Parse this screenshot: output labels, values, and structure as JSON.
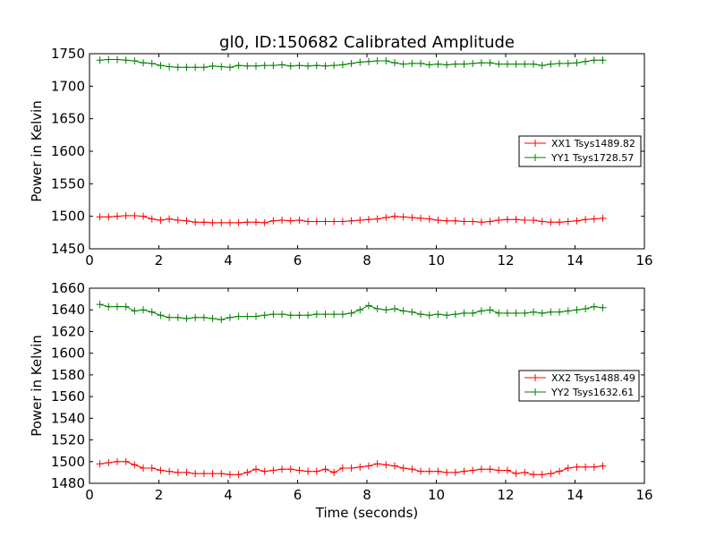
{
  "title": "gl0, ID:150682 Calibrated Amplitude",
  "colors": {
    "red": "#ff0000",
    "green": "#008000"
  },
  "chart_data": [
    {
      "type": "line",
      "title": "gl0, ID:150682 Calibrated Amplitude",
      "xlabel": "",
      "ylabel": "Power in Kelvin",
      "xlim": [
        0,
        16
      ],
      "ylim": [
        1450,
        1750
      ],
      "xticks": [
        "0",
        "2",
        "4",
        "6",
        "8",
        "10",
        "12",
        "14",
        "16"
      ],
      "yticks": [
        "1450",
        "1500",
        "1550",
        "1600",
        "1650",
        "1700",
        "1750"
      ],
      "legend_position": "center-right",
      "x": [
        0.3,
        0.55,
        0.8,
        1.05,
        1.3,
        1.55,
        1.8,
        2.05,
        2.3,
        2.55,
        2.8,
        3.05,
        3.3,
        3.55,
        3.8,
        4.05,
        4.3,
        4.55,
        4.8,
        5.05,
        5.3,
        5.55,
        5.8,
        6.05,
        6.3,
        6.55,
        6.8,
        7.05,
        7.3,
        7.55,
        7.8,
        8.05,
        8.3,
        8.55,
        8.8,
        9.05,
        9.3,
        9.55,
        9.8,
        10.05,
        10.3,
        10.55,
        10.8,
        11.05,
        11.3,
        11.55,
        11.8,
        12.05,
        12.3,
        12.55,
        12.8,
        13.05,
        13.3,
        13.55,
        13.8,
        14.05,
        14.3,
        14.55,
        14.8
      ],
      "series": [
        {
          "name": "XX1 Tsys1489.82",
          "color": "#ff0000",
          "values": [
            1499,
            1499,
            1500,
            1501,
            1501,
            1500,
            1496,
            1494,
            1496,
            1494,
            1493,
            1491,
            1491,
            1490,
            1490,
            1490,
            1490,
            1491,
            1491,
            1490,
            1493,
            1494,
            1493,
            1494,
            1492,
            1492,
            1492,
            1492,
            1492,
            1493,
            1494,
            1495,
            1496,
            1498,
            1500,
            1499,
            1498,
            1497,
            1496,
            1494,
            1493,
            1493,
            1492,
            1492,
            1491,
            1492,
            1494,
            1495,
            1495,
            1494,
            1494,
            1492,
            1491,
            1491,
            1492,
            1493,
            1495,
            1496,
            1497
          ]
        },
        {
          "name": "YY1 Tsys1728.57",
          "color": "#008000",
          "values": [
            1740,
            1741,
            1741,
            1740,
            1739,
            1736,
            1735,
            1732,
            1730,
            1729,
            1729,
            1729,
            1729,
            1731,
            1730,
            1729,
            1732,
            1731,
            1731,
            1732,
            1732,
            1733,
            1731,
            1732,
            1731,
            1732,
            1731,
            1732,
            1733,
            1735,
            1737,
            1738,
            1739,
            1739,
            1736,
            1734,
            1735,
            1735,
            1733,
            1734,
            1733,
            1734,
            1734,
            1735,
            1736,
            1736,
            1734,
            1734,
            1734,
            1734,
            1734,
            1732,
            1734,
            1735,
            1735,
            1736,
            1738,
            1740,
            1740
          ]
        }
      ]
    },
    {
      "type": "line",
      "title": "",
      "xlabel": "Time (seconds)",
      "ylabel": "Power in Kelvin",
      "xlim": [
        0,
        16
      ],
      "ylim": [
        1480,
        1660
      ],
      "xticks": [
        "0",
        "2",
        "4",
        "6",
        "8",
        "10",
        "12",
        "14",
        "16"
      ],
      "yticks": [
        "1480",
        "1500",
        "1520",
        "1540",
        "1560",
        "1580",
        "1600",
        "1620",
        "1640",
        "1660"
      ],
      "legend_position": "center-right",
      "x": [
        0.3,
        0.55,
        0.8,
        1.05,
        1.3,
        1.55,
        1.8,
        2.05,
        2.3,
        2.55,
        2.8,
        3.05,
        3.3,
        3.55,
        3.8,
        4.05,
        4.3,
        4.55,
        4.8,
        5.05,
        5.3,
        5.55,
        5.8,
        6.05,
        6.3,
        6.55,
        6.8,
        7.05,
        7.3,
        7.55,
        7.8,
        8.05,
        8.3,
        8.55,
        8.8,
        9.05,
        9.3,
        9.55,
        9.8,
        10.05,
        10.3,
        10.55,
        10.8,
        11.05,
        11.3,
        11.55,
        11.8,
        12.05,
        12.3,
        12.55,
        12.8,
        13.05,
        13.3,
        13.55,
        13.8,
        14.05,
        14.3,
        14.55,
        14.8
      ],
      "series": [
        {
          "name": "XX2 Tsys1488.49",
          "color": "#ff0000",
          "values": [
            1498,
            1499,
            1500,
            1500,
            1497,
            1494,
            1494,
            1492,
            1491,
            1490,
            1490,
            1489,
            1489,
            1489,
            1489,
            1488,
            1488,
            1490,
            1493,
            1491,
            1492,
            1493,
            1493,
            1492,
            1491,
            1491,
            1493,
            1490,
            1494,
            1494,
            1495,
            1496,
            1498,
            1497,
            1496,
            1494,
            1493,
            1491,
            1491,
            1491,
            1490,
            1490,
            1491,
            1492,
            1493,
            1493,
            1492,
            1492,
            1489,
            1490,
            1488,
            1488,
            1489,
            1491,
            1494,
            1495,
            1495,
            1495,
            1496
          ]
        },
        {
          "name": "YY2 Tsys1632.61",
          "color": "#008000",
          "values": [
            1645,
            1643,
            1643,
            1643,
            1639,
            1640,
            1638,
            1635,
            1633,
            1633,
            1632,
            1633,
            1633,
            1632,
            1631,
            1633,
            1634,
            1634,
            1634,
            1635,
            1636,
            1636,
            1635,
            1635,
            1635,
            1636,
            1636,
            1636,
            1636,
            1637,
            1640,
            1644,
            1641,
            1640,
            1641,
            1639,
            1638,
            1636,
            1635,
            1636,
            1635,
            1636,
            1637,
            1637,
            1639,
            1640,
            1637,
            1637,
            1637,
            1637,
            1638,
            1637,
            1638,
            1638,
            1639,
            1640,
            1641,
            1643,
            1642
          ]
        }
      ]
    }
  ]
}
